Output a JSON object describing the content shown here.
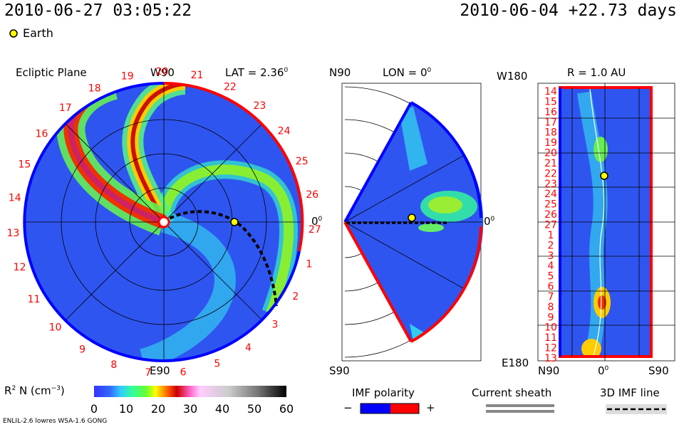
{
  "header": {
    "timestamp": "2010-06-27 03:05:22",
    "reference": "2010-06-04 +22.73 days",
    "legend_earth": "Earth"
  },
  "panels": {
    "ecliptic": {
      "title": "Ecliptic Plane",
      "lat_label": "LAT = 2.36",
      "lat_sup": "0",
      "top_label": "W90",
      "bottom_label": "E90",
      "right_label": "0",
      "right_sup": "0"
    },
    "meridional": {
      "top_label": "N90",
      "bottom_label": "S90",
      "lon_label": "LON = 0",
      "lon_sup": "0",
      "right_label": "0",
      "right_sup": "0"
    },
    "radial": {
      "title": "R = 1.0 AU",
      "top_left": "W180",
      "bottom_left": "E180",
      "x_left": "N90",
      "x_mid": "0",
      "x_mid_sup": "0",
      "x_right": "S90"
    }
  },
  "chart_data": {
    "type": "heatmap",
    "quantity": "R² N (cm⁻³)",
    "colorbar": {
      "label_main": "R",
      "label_sup": "2",
      "label_rest": " N (cm",
      "label_sup2": "−3",
      "label_end": ")",
      "ticks": [
        "0",
        "10",
        "20",
        "30",
        "40",
        "50",
        "60"
      ],
      "range": [
        0,
        60
      ]
    },
    "day_labels_ecliptic": [
      "19",
      "20",
      "21",
      "22",
      "23",
      "24",
      "25",
      "26",
      "27",
      "1",
      "2",
      "3",
      "4",
      "5",
      "6",
      "7",
      "8",
      "9",
      "10",
      "11",
      "12",
      "13",
      "14",
      "15",
      "16",
      "17",
      "18"
    ],
    "day_labels_radial": [
      "14",
      "15",
      "16",
      "17",
      "18",
      "19",
      "20",
      "21",
      "22",
      "23",
      "24",
      "25",
      "26",
      "27",
      "1",
      "2",
      "3",
      "4",
      "5",
      "6",
      "7",
      "8",
      "9",
      "10",
      "11",
      "12",
      "13"
    ]
  },
  "legends": {
    "imf_polarity": "IMF polarity",
    "imf_minus": "−",
    "imf_plus": "+",
    "current_sheath": "Current sheath",
    "imf_line": "3D IMF line"
  },
  "footer": {
    "model": "ENLIL-2.6 lowres WSA-1.6 GONG"
  },
  "colors": {
    "earth": "#ffff00",
    "polarity_neg": "#0000ff",
    "polarity_pos": "#ff0000",
    "day_label": "#ff0000"
  }
}
